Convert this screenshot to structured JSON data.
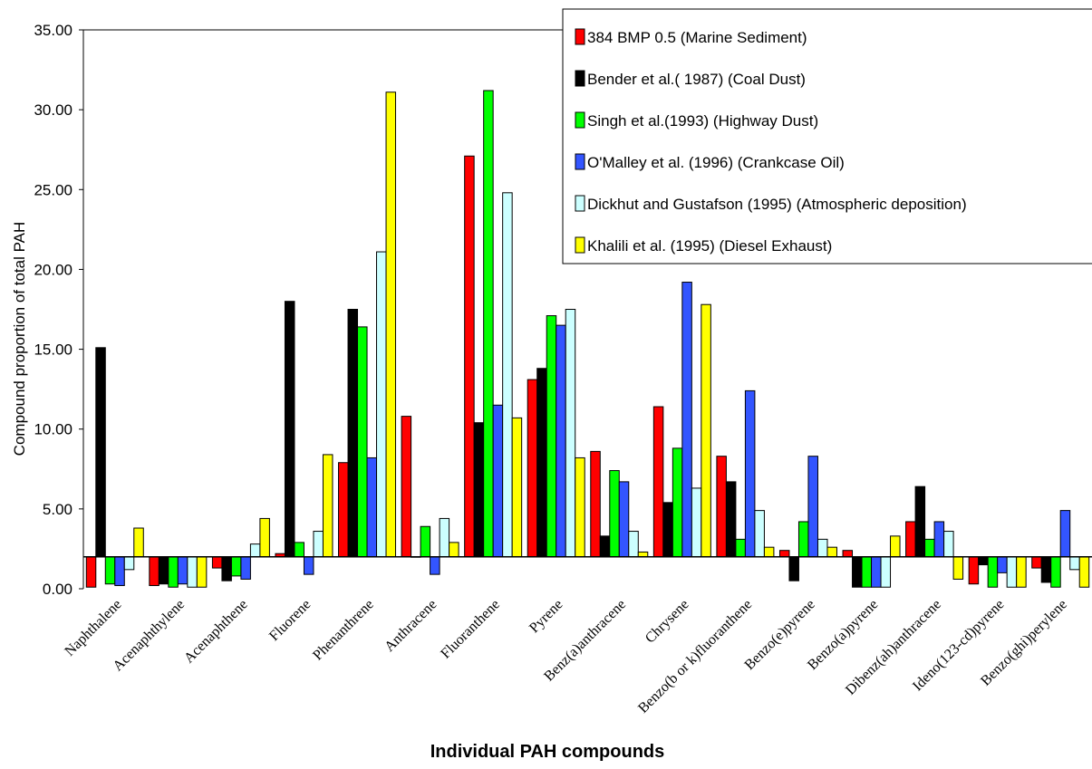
{
  "chart_data": {
    "type": "bar",
    "title": "",
    "xlabel": "Individual PAH compounds",
    "ylabel": "Compound proportion of total PAH",
    "ylim": [
      0,
      35
    ],
    "yticks": [
      "0.00",
      "5.00",
      "10.00",
      "15.00",
      "20.00",
      "25.00",
      "30.00",
      "35.00"
    ],
    "baseline": 2,
    "grid": false,
    "legend_position": "top-right",
    "categories": [
      "Naphthalene",
      "Acenaphthylene",
      "Acenaphthene",
      "Fluorene",
      "Phenanthrene",
      "Anthracene",
      "Fluoranthene",
      "Pyrene",
      "Benz(a)anthracene",
      "Chrysene",
      "Benzo(b or k)fluoranthene",
      "Benzo(e)pyrene",
      "Benzo(a)pyrene",
      "Dibenz(ah)anthracene",
      "Ideno(123-cd)pyrene",
      "Benzo(ghi)perylene"
    ],
    "series": [
      {
        "name": "384 BMP 0.5 (Marine Sediment)",
        "color": "#ff0000",
        "values": [
          0.1,
          0.2,
          1.3,
          2.2,
          7.9,
          10.8,
          27.1,
          13.1,
          8.6,
          11.4,
          8.3,
          2.4,
          2.4,
          4.2,
          0.3,
          1.3
        ]
      },
      {
        "name": "Bender et al.( 1987) (Coal Dust)",
        "color": "#000000",
        "values": [
          15.1,
          0.3,
          0.5,
          18.0,
          17.5,
          2.0,
          10.4,
          13.8,
          3.3,
          5.4,
          6.7,
          0.5,
          0.1,
          6.4,
          1.5,
          0.4
        ]
      },
      {
        "name": "Singh et al.(1993) (Highway Dust)",
        "color": "#00ff00",
        "values": [
          0.3,
          0.1,
          0.8,
          2.9,
          16.4,
          3.9,
          31.2,
          17.1,
          7.4,
          8.8,
          3.1,
          4.2,
          0.1,
          3.1,
          0.1,
          0.1
        ]
      },
      {
        "name": "O'Malley et al. (1996) (Crankcase Oil)",
        "color": "#3355ff",
        "values": [
          0.2,
          0.3,
          0.6,
          0.9,
          8.2,
          0.9,
          11.5,
          16.5,
          6.7,
          19.2,
          12.4,
          8.3,
          0.1,
          4.2,
          1.0,
          4.9
        ]
      },
      {
        "name": "Dickhut and Gustafson (1995) (Atmospheric deposition)",
        "color": "#ccffff",
        "values": [
          1.2,
          0.1,
          2.8,
          3.6,
          21.1,
          4.4,
          24.8,
          17.5,
          3.6,
          6.3,
          4.9,
          3.1,
          0.1,
          3.6,
          0.1,
          1.2
        ]
      },
      {
        "name": "Khalili et al. (1995) (Diesel Exhaust)",
        "color": "#ffff00",
        "values": [
          3.8,
          0.1,
          4.4,
          8.4,
          31.1,
          2.9,
          10.7,
          8.2,
          2.3,
          17.8,
          2.6,
          2.6,
          3.3,
          0.6,
          0.1,
          0.1
        ]
      }
    ]
  }
}
